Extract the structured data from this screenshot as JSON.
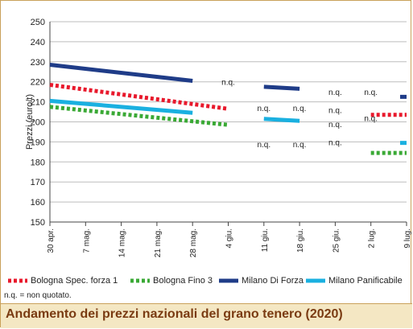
{
  "chart_data": {
    "type": "line",
    "title": "Andamento dei prezzi nazionali del grano tenero (2020)",
    "ylabel": "Prezzi (euro/t)",
    "xlabel": "",
    "ylim": [
      150,
      250
    ],
    "yticks": [
      150,
      160,
      170,
      180,
      190,
      200,
      210,
      220,
      230,
      240,
      250
    ],
    "categories": [
      "30 apr.",
      "7 mag.",
      "14 mag.",
      "21 mag.",
      "28 mag.",
      "4 giu.",
      "11 giu.",
      "18 giu.",
      "25 giu.",
      "2 lug.",
      "9 lug."
    ],
    "grid": true,
    "legend_position": "bottom",
    "series": [
      {
        "name": "Bologna Spec. forza 1",
        "color": "#e8192c",
        "style": "dotted",
        "values": [
          218.5,
          null,
          null,
          null,
          208.5,
          206.5,
          null,
          null,
          null,
          203.5,
          203.5
        ]
      },
      {
        "name": "Bologna Fino 3",
        "color": "#3aa935",
        "style": "dotted",
        "values": [
          207.5,
          null,
          null,
          null,
          200.5,
          198.5,
          null,
          null,
          null,
          184.5,
          184.5
        ]
      },
      {
        "name": "Milano Di Forza",
        "color": "#1f3c88",
        "style": "solid",
        "values": [
          228.5,
          null,
          null,
          null,
          220.5,
          null,
          217.5,
          216.5,
          null,
          null,
          212.5
        ]
      },
      {
        "name": "Milano Panificabile",
        "color": "#1ab0e0",
        "style": "solid",
        "values": [
          210.5,
          null,
          null,
          null,
          204.5,
          null,
          201.5,
          200.5,
          null,
          null,
          189.5
        ]
      }
    ],
    "segments": [
      {
        "series": 0,
        "from": 0,
        "to": 5
      },
      {
        "series": 1,
        "from": 0,
        "to": 5
      },
      {
        "series": 2,
        "from": 0,
        "to": 4
      },
      {
        "series": 3,
        "from": 0,
        "to": 4
      },
      {
        "series": 2,
        "from": 6,
        "to": 7
      },
      {
        "series": 3,
        "from": 6,
        "to": 7
      },
      {
        "series": 0,
        "from": 9,
        "to": 10
      },
      {
        "series": 1,
        "from": 9,
        "to": 10
      },
      {
        "series": 2,
        "from": 10,
        "to": 10
      },
      {
        "series": 3,
        "from": 10,
        "to": 10
      }
    ],
    "annotations": [
      {
        "text": "n.q.",
        "x": 5,
        "y": 220
      },
      {
        "text": "n.q.",
        "x": 6,
        "y": 207
      },
      {
        "text": "n.q.",
        "x": 6,
        "y": 189
      },
      {
        "text": "n.q.",
        "x": 7,
        "y": 207
      },
      {
        "text": "n.q.",
        "x": 7,
        "y": 189
      },
      {
        "text": "n.q.",
        "x": 8,
        "y": 215
      },
      {
        "text": "n.q.",
        "x": 8,
        "y": 206
      },
      {
        "text": "n.q.",
        "x": 8,
        "y": 199
      },
      {
        "text": "n.q.",
        "x": 8,
        "y": 190
      },
      {
        "text": "n.q.",
        "x": 9,
        "y": 215
      },
      {
        "text": "n.q.",
        "x": 9,
        "y": 202
      }
    ]
  },
  "note": "n.q. = non quotato.",
  "footer_title": "Andamento dei prezzi nazionali del grano tenero (2020)"
}
